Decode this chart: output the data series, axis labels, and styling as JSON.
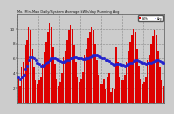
{
  "title": "Mo. Min-Max Daily/System Average kWh/day Running Avg",
  "bar_color": "#dd0000",
  "avg_color": "#2222cc",
  "background_color": "#cccccc",
  "plot_bg_color": "#cccccc",
  "grid_color": "#aaaaaa",
  "legend_bar_color": "#dd0000",
  "legend_avg_color": "#2222cc",
  "monthly_values": [
    3.5,
    2.2,
    4.8,
    5.5,
    7.8,
    8.5,
    10.2,
    9.8,
    7.2,
    4.8,
    3.1,
    2.5,
    3.0,
    3.5,
    5.2,
    6.8,
    8.2,
    9.5,
    10.8,
    10.2,
    7.5,
    5.2,
    3.2,
    2.2,
    2.8,
    4.0,
    6.2,
    7.0,
    8.5,
    9.8,
    10.5,
    10.0,
    7.8,
    5.5,
    3.5,
    2.8,
    3.2,
    4.2,
    6.5,
    7.2,
    8.8,
    9.5,
    10.2,
    9.8,
    8.0,
    5.8,
    3.8,
    2.5,
    2.5,
    3.2,
    1.8,
    3.5,
    4.0,
    1.5,
    2.0,
    1.8,
    7.5,
    5.5,
    3.5,
    3.0,
    3.0,
    3.8,
    5.5,
    7.0,
    8.2,
    9.2,
    10.0,
    9.5,
    7.2,
    5.0,
    3.2,
    2.5,
    2.8,
    3.5,
    5.8,
    6.5,
    8.0,
    9.0,
    9.8,
    9.2,
    7.0,
    4.8,
    3.0,
    2.2
  ],
  "running_avg": [
    3.5,
    3.2,
    3.5,
    3.8,
    4.5,
    5.0,
    5.8,
    6.2,
    6.2,
    6.0,
    5.7,
    5.4,
    5.2,
    5.0,
    5.0,
    5.1,
    5.3,
    5.5,
    5.8,
    6.0,
    6.1,
    6.0,
    5.9,
    5.7,
    5.6,
    5.5,
    5.5,
    5.6,
    5.7,
    5.8,
    6.0,
    6.1,
    6.2,
    6.2,
    6.1,
    6.0,
    6.0,
    5.9,
    5.9,
    6.0,
    6.1,
    6.2,
    6.3,
    6.4,
    6.4,
    6.4,
    6.3,
    6.2,
    6.1,
    6.0,
    5.8,
    5.7,
    5.6,
    5.4,
    5.2,
    5.1,
    5.2,
    5.2,
    5.2,
    5.1,
    5.1,
    5.0,
    5.1,
    5.2,
    5.3,
    5.4,
    5.6,
    5.7,
    5.7,
    5.6,
    5.5,
    5.4,
    5.3,
    5.2,
    5.3,
    5.3,
    5.4,
    5.5,
    5.6,
    5.7,
    5.7,
    5.6,
    5.5,
    5.4
  ],
  "ylim": [
    0,
    12
  ],
  "ytick_vals": [
    2,
    4,
    6,
    8,
    10
  ],
  "n_months": 84
}
